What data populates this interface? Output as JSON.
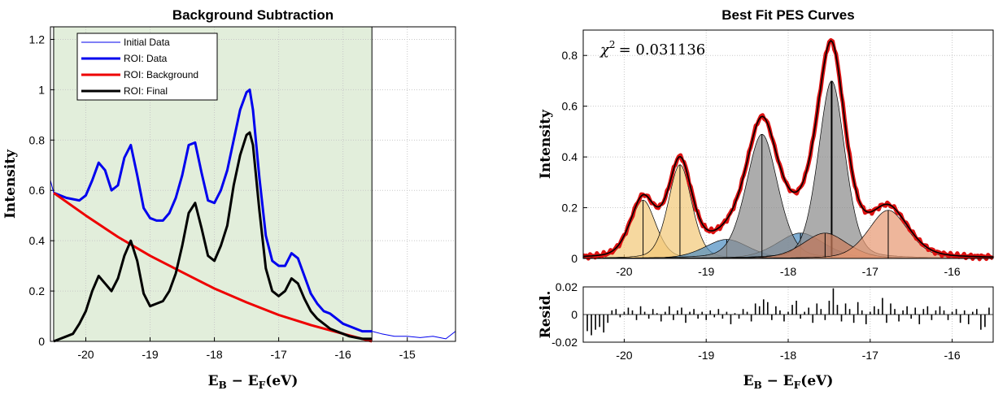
{
  "chart_data": [
    {
      "type": "line",
      "title": "Background Subtraction",
      "xlabel": "E_B − E_F(eV)",
      "ylabel": "Intensity",
      "xlim": [
        -20.55,
        -14.25
      ],
      "ylim": [
        0,
        1.25
      ],
      "x_reversed": false,
      "grid": true,
      "legend_placement": "top-left",
      "x_ticks": [
        -20,
        -19,
        -18,
        -17,
        -16,
        -15
      ],
      "y_ticks": [
        0,
        0.2,
        0.4,
        0.6,
        0.8,
        1,
        1.2
      ],
      "roi_shading": {
        "x_range": [
          -20.5,
          -15.55
        ],
        "color": "#e2eedb"
      },
      "series": [
        {
          "name": "Initial Data",
          "color": "#0000ee",
          "width": 1,
          "x": [
            -20.55,
            -20.5,
            -20.3,
            -20.1,
            -20.0,
            -19.9,
            -19.8,
            -19.7,
            -19.6,
            -19.5,
            -19.4,
            -19.3,
            -19.2,
            -19.1,
            -19.0,
            -18.9,
            -18.8,
            -18.7,
            -18.6,
            -18.5,
            -18.4,
            -18.3,
            -18.2,
            -18.1,
            -18.0,
            -17.9,
            -17.8,
            -17.7,
            -17.6,
            -17.5,
            -17.45,
            -17.4,
            -17.3,
            -17.2,
            -17.1,
            -17.0,
            -16.9,
            -16.8,
            -16.7,
            -16.6,
            -16.5,
            -16.4,
            -16.3,
            -16.2,
            -16.1,
            -16.0,
            -15.9,
            -15.8,
            -15.7,
            -15.55,
            -15.4,
            -15.2,
            -15.0,
            -14.8,
            -14.6,
            -14.4,
            -14.25
          ],
          "y": [
            0.64,
            0.59,
            0.57,
            0.56,
            0.58,
            0.64,
            0.71,
            0.68,
            0.6,
            0.62,
            0.73,
            0.78,
            0.66,
            0.53,
            0.49,
            0.48,
            0.48,
            0.51,
            0.57,
            0.66,
            0.78,
            0.79,
            0.67,
            0.56,
            0.55,
            0.6,
            0.68,
            0.8,
            0.92,
            0.99,
            1.0,
            0.92,
            0.65,
            0.42,
            0.32,
            0.3,
            0.3,
            0.35,
            0.33,
            0.26,
            0.19,
            0.15,
            0.12,
            0.11,
            0.09,
            0.07,
            0.06,
            0.05,
            0.04,
            0.04,
            0.03,
            0.02,
            0.02,
            0.015,
            0.02,
            0.01,
            0.04
          ]
        },
        {
          "name": "ROI: Data",
          "color": "#0000ee",
          "width": 3,
          "x": [
            -20.5,
            -20.3,
            -20.1,
            -20.0,
            -19.9,
            -19.8,
            -19.7,
            -19.6,
            -19.5,
            -19.4,
            -19.3,
            -19.2,
            -19.1,
            -19.0,
            -18.9,
            -18.8,
            -18.7,
            -18.6,
            -18.5,
            -18.4,
            -18.3,
            -18.2,
            -18.1,
            -18.0,
            -17.9,
            -17.8,
            -17.7,
            -17.6,
            -17.5,
            -17.45,
            -17.4,
            -17.3,
            -17.2,
            -17.1,
            -17.0,
            -16.9,
            -16.8,
            -16.7,
            -16.6,
            -16.5,
            -16.4,
            -16.3,
            -16.2,
            -16.1,
            -16.0,
            -15.9,
            -15.8,
            -15.7,
            -15.55
          ],
          "y": [
            0.59,
            0.57,
            0.56,
            0.58,
            0.64,
            0.71,
            0.68,
            0.6,
            0.62,
            0.73,
            0.78,
            0.66,
            0.53,
            0.49,
            0.48,
            0.48,
            0.51,
            0.57,
            0.66,
            0.78,
            0.79,
            0.67,
            0.56,
            0.55,
            0.6,
            0.68,
            0.8,
            0.92,
            0.99,
            1.0,
            0.92,
            0.65,
            0.42,
            0.32,
            0.3,
            0.3,
            0.35,
            0.33,
            0.26,
            0.19,
            0.15,
            0.12,
            0.11,
            0.09,
            0.07,
            0.06,
            0.05,
            0.04,
            0.04
          ]
        },
        {
          "name": "ROI: Background",
          "color": "#ee0000",
          "width": 3,
          "x": [
            -20.5,
            -20.0,
            -19.5,
            -19.0,
            -18.5,
            -18.0,
            -17.5,
            -17.0,
            -16.5,
            -16.0,
            -15.55
          ],
          "y": [
            0.59,
            0.5,
            0.415,
            0.34,
            0.275,
            0.21,
            0.155,
            0.105,
            0.065,
            0.03,
            0.0
          ]
        },
        {
          "name": "ROI: Final",
          "color": "#000000",
          "width": 3,
          "x": [
            -20.5,
            -20.4,
            -20.3,
            -20.2,
            -20.1,
            -20.0,
            -19.9,
            -19.8,
            -19.7,
            -19.6,
            -19.5,
            -19.4,
            -19.3,
            -19.2,
            -19.1,
            -19.0,
            -18.9,
            -18.8,
            -18.7,
            -18.6,
            -18.5,
            -18.4,
            -18.3,
            -18.2,
            -18.1,
            -18.0,
            -17.9,
            -17.8,
            -17.7,
            -17.6,
            -17.5,
            -17.45,
            -17.4,
            -17.3,
            -17.2,
            -17.1,
            -17.0,
            -16.9,
            -16.8,
            -16.7,
            -16.6,
            -16.5,
            -16.4,
            -16.3,
            -16.2,
            -16.1,
            -16.0,
            -15.9,
            -15.8,
            -15.7,
            -15.55
          ],
          "y": [
            0.0,
            0.01,
            0.02,
            0.03,
            0.07,
            0.12,
            0.2,
            0.26,
            0.23,
            0.2,
            0.25,
            0.34,
            0.4,
            0.32,
            0.19,
            0.14,
            0.15,
            0.16,
            0.2,
            0.27,
            0.38,
            0.51,
            0.55,
            0.45,
            0.34,
            0.32,
            0.38,
            0.46,
            0.62,
            0.74,
            0.82,
            0.83,
            0.78,
            0.52,
            0.29,
            0.2,
            0.18,
            0.2,
            0.25,
            0.23,
            0.17,
            0.12,
            0.09,
            0.07,
            0.05,
            0.04,
            0.03,
            0.02,
            0.015,
            0.01,
            0.01
          ]
        }
      ]
    },
    {
      "type": "area",
      "title": "Best Fit PES Curves",
      "xlabel": "E_B − E_F(eV)",
      "ylabel": "Intensity",
      "xlim": [
        -20.5,
        -15.5
      ],
      "ylim": [
        0,
        0.9
      ],
      "grid": true,
      "x_ticks": [
        -20,
        -19,
        -18,
        -17,
        -16
      ],
      "y_ticks": [
        0,
        0.2,
        0.4,
        0.6,
        0.8
      ],
      "annotation": {
        "lhs": "χ",
        "sup": "2",
        "rhs": "= 0.031136"
      },
      "components": [
        {
          "center": -19.77,
          "amplitude": 0.23,
          "width": 0.16,
          "color": "#f2c97a"
        },
        {
          "center": -19.32,
          "amplitude": 0.37,
          "width": 0.15,
          "color": "#f2c97a"
        },
        {
          "center": -18.75,
          "amplitude": 0.075,
          "width": 0.28,
          "color": "#4f8fc2"
        },
        {
          "center": -17.85,
          "amplitude": 0.1,
          "width": 0.3,
          "color": "#4f8fc2"
        },
        {
          "center": -18.32,
          "amplitude": 0.49,
          "width": 0.2,
          "color": "#8c8c8c"
        },
        {
          "center": -17.47,
          "amplitude": 0.7,
          "width": 0.17,
          "color": "#8c8c8c"
        },
        {
          "center": -17.55,
          "amplitude": 0.1,
          "width": 0.28,
          "color": "#c97b5a"
        },
        {
          "center": -16.78,
          "amplitude": 0.19,
          "width": 0.25,
          "color": "#e89a74"
        }
      ],
      "data_line_color": "#dd1111",
      "fit_line_color": "#000000",
      "residuals": {
        "ylabel": "Resid.",
        "ylim": [
          -0.02,
          0.02
        ],
        "y_ticks": [
          -0.02,
          0,
          0.02
        ],
        "x": [
          -20.45,
          -20.4,
          -20.35,
          -20.3,
          -20.25,
          -20.2,
          -20.15,
          -20.1,
          -20.05,
          -20.0,
          -19.95,
          -19.9,
          -19.85,
          -19.8,
          -19.75,
          -19.7,
          -19.65,
          -19.6,
          -19.55,
          -19.5,
          -19.45,
          -19.4,
          -19.35,
          -19.3,
          -19.25,
          -19.2,
          -19.15,
          -19.1,
          -19.05,
          -19.0,
          -18.95,
          -18.9,
          -18.85,
          -18.8,
          -18.75,
          -18.7,
          -18.65,
          -18.6,
          -18.55,
          -18.5,
          -18.45,
          -18.4,
          -18.35,
          -18.3,
          -18.25,
          -18.2,
          -18.15,
          -18.1,
          -18.05,
          -18.0,
          -17.95,
          -17.9,
          -17.85,
          -17.8,
          -17.75,
          -17.7,
          -17.65,
          -17.6,
          -17.55,
          -17.5,
          -17.45,
          -17.4,
          -17.35,
          -17.3,
          -17.25,
          -17.2,
          -17.15,
          -17.1,
          -17.05,
          -17.0,
          -16.95,
          -16.9,
          -16.85,
          -16.8,
          -16.75,
          -16.7,
          -16.65,
          -16.6,
          -16.55,
          -16.5,
          -16.45,
          -16.4,
          -16.35,
          -16.3,
          -16.25,
          -16.2,
          -16.15,
          -16.1,
          -16.05,
          -16.0,
          -15.95,
          -15.9,
          -15.85,
          -15.8,
          -15.75,
          -15.7,
          -15.65,
          -15.6,
          -15.55
        ],
        "y": [
          -0.012,
          -0.015,
          -0.011,
          -0.009,
          -0.013,
          -0.006,
          0.003,
          0.004,
          -0.002,
          0.002,
          0.005,
          0.003,
          -0.004,
          0.006,
          0.002,
          -0.003,
          0.004,
          0.001,
          -0.005,
          0.002,
          0.006,
          -0.004,
          0.003,
          0.005,
          -0.006,
          0.002,
          0.004,
          -0.003,
          0.002,
          -0.004,
          0.003,
          -0.002,
          0.004,
          -0.003,
          0.002,
          -0.007,
          0.001,
          -0.003,
          0.004,
          0.002,
          -0.005,
          0.008,
          0.006,
          0.011,
          0.009,
          -0.004,
          0.006,
          0.003,
          -0.005,
          0.002,
          0.007,
          0.01,
          -0.003,
          0.002,
          0.005,
          -0.006,
          0.008,
          0.004,
          -0.004,
          0.01,
          0.019,
          0.007,
          -0.005,
          0.008,
          0.004,
          -0.006,
          0.009,
          0.003,
          -0.007,
          0.002,
          0.006,
          0.004,
          0.012,
          -0.006,
          0.008,
          0.004,
          -0.005,
          0.003,
          0.006,
          -0.003,
          0.005,
          -0.007,
          0.004,
          0.006,
          -0.004,
          0.003,
          0.006,
          0.003,
          -0.004,
          0.002,
          0.004,
          -0.006,
          0.003,
          -0.007,
          0.002,
          0.004,
          -0.011,
          -0.009,
          0.005
        ]
      }
    }
  ]
}
